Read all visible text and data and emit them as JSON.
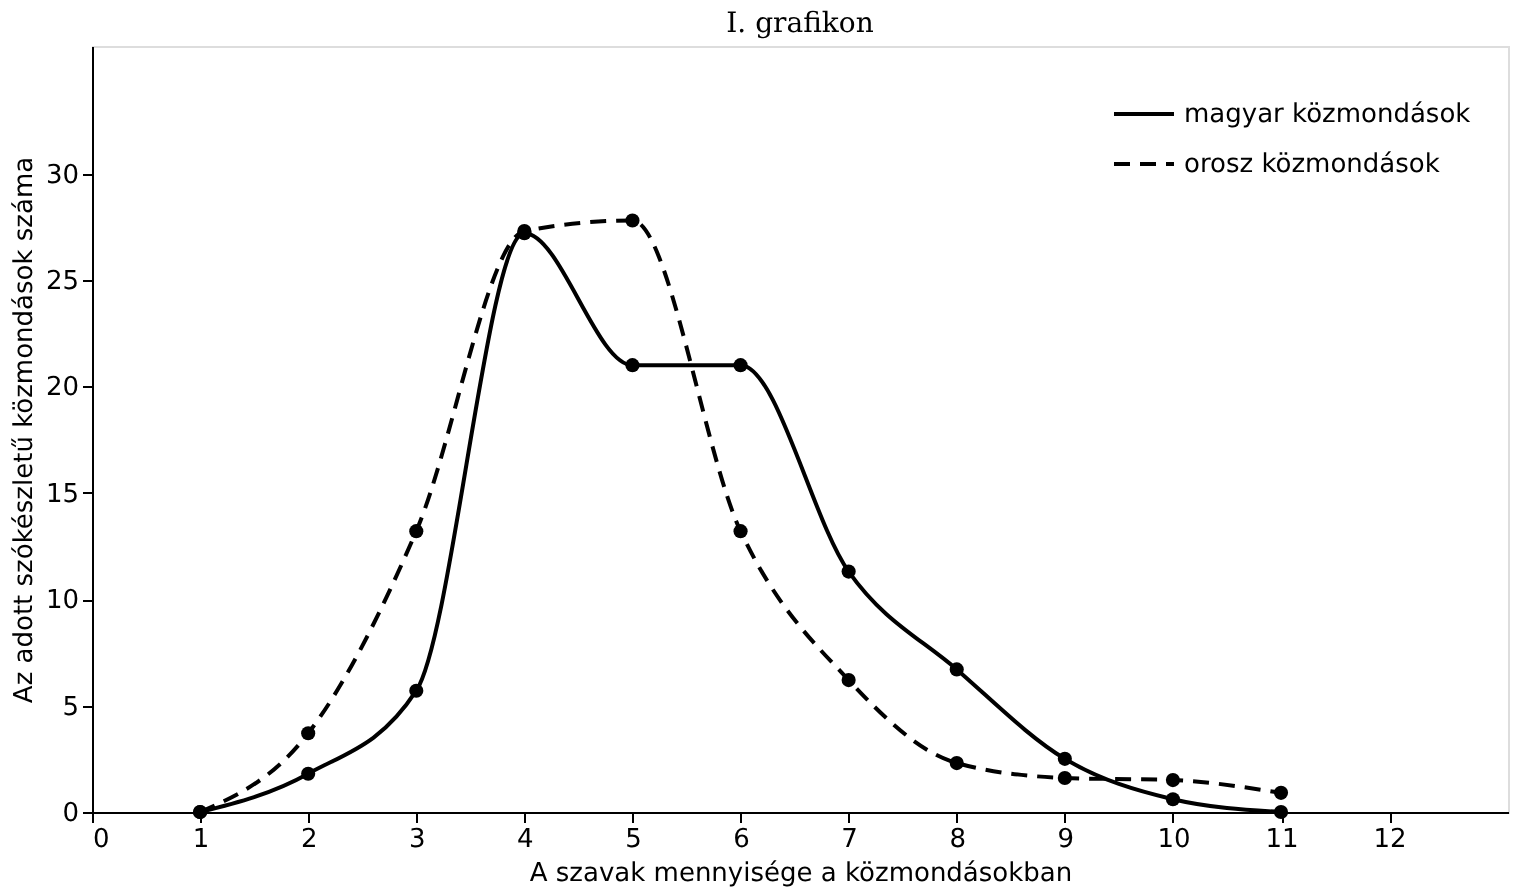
{
  "chart_data": {
    "type": "line",
    "title": "I. grafikon",
    "xlabel": "A szavak mennyisége a közmondásokban",
    "ylabel": "Az adott szókészletű közmondások száma",
    "x": [
      1,
      2,
      3,
      4,
      5,
      6,
      7,
      8,
      9,
      10,
      11
    ],
    "series": [
      {
        "name": "magyar közmondások",
        "color": "#000000",
        "line_style": "solid",
        "values": [
          0,
          1.8,
          5.7,
          27.2,
          21,
          21,
          11.3,
          6.7,
          2.5,
          0.6,
          0
        ]
      },
      {
        "name": "orosz közmondások",
        "color": "#000000",
        "line_style": "dashed",
        "values": [
          0,
          3.7,
          13.2,
          27.3,
          27.8,
          13.2,
          6.2,
          2.3,
          1.6,
          1.5,
          0.9
        ]
      }
    ],
    "xlim": [
      0,
      13.1
    ],
    "ylim": [
      0,
      36
    ],
    "xticks": [
      0,
      1,
      2,
      3,
      4,
      5,
      6,
      7,
      8,
      9,
      10,
      11,
      12
    ],
    "yticks": [
      0,
      5,
      10,
      15,
      20,
      25,
      30
    ],
    "grid": false,
    "legend": "top right",
    "marker": "circle"
  }
}
